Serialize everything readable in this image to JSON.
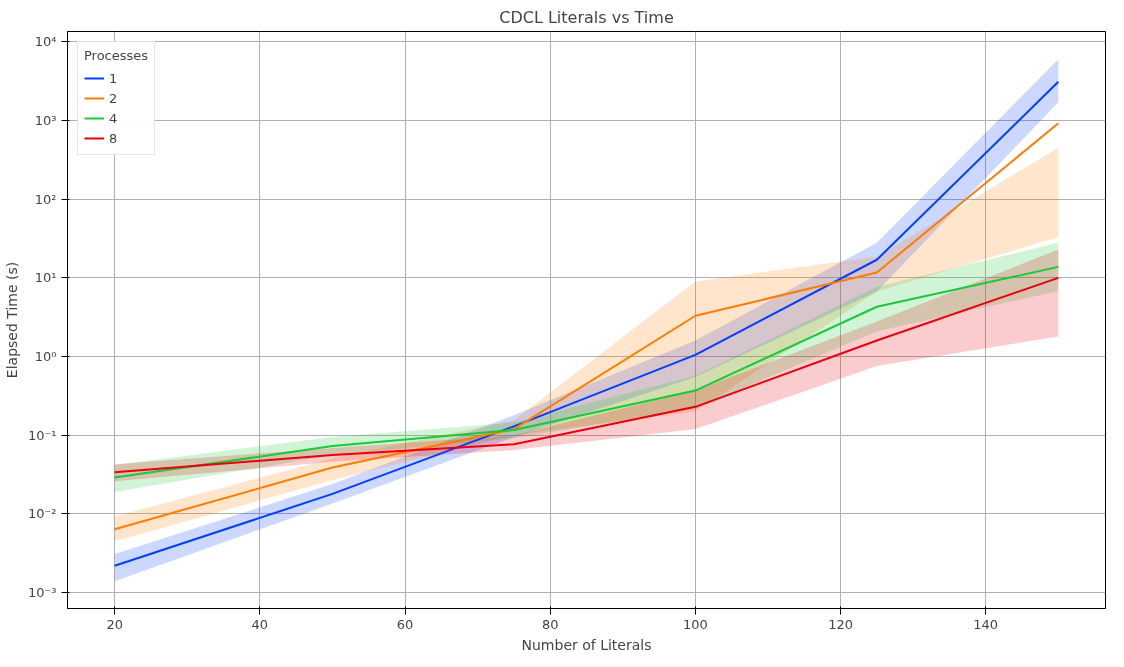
{
  "chart_data": {
    "type": "line",
    "title": "CDCL Literals vs Time",
    "xlabel": "Number of Literals",
    "ylabel": "Elapsed Time (s)",
    "legend_title": "Processes",
    "x": [
      20,
      50,
      75,
      100,
      125,
      150
    ],
    "series": [
      {
        "name": "1",
        "color": "#023eff",
        "values": [
          0.0022,
          0.018,
          0.13,
          1.05,
          17,
          3100
        ],
        "lower": [
          0.0014,
          0.0136,
          0.095,
          0.55,
          6.7,
          1700
        ],
        "upper": [
          0.0031,
          0.024,
          0.18,
          1.6,
          28,
          6000
        ]
      },
      {
        "name": "2",
        "color": "#ff7c00",
        "values": [
          0.0064,
          0.039,
          0.12,
          3.3,
          11.7,
          920
        ],
        "lower": [
          0.0045,
          0.027,
          0.1,
          0.2,
          6.7,
          33
        ],
        "upper": [
          0.0093,
          0.051,
          0.155,
          9,
          18.6,
          450
        ]
      },
      {
        "name": "4",
        "color": "#1ac938",
        "values": [
          0.029,
          0.073,
          0.117,
          0.37,
          4.3,
          13.8
        ],
        "lower": [
          0.019,
          0.056,
          0.092,
          0.22,
          2.1,
          6.8
        ],
        "upper": [
          0.042,
          0.095,
          0.146,
          0.57,
          7.7,
          28
        ]
      },
      {
        "name": "8",
        "color": "#e8000b",
        "values": [
          0.034,
          0.056,
          0.077,
          0.23,
          1.6,
          10
        ],
        "lower": [
          0.026,
          0.046,
          0.065,
          0.12,
          0.76,
          1.8
        ],
        "upper": [
          0.043,
          0.069,
          0.1,
          0.37,
          2.8,
          23
        ]
      }
    ],
    "log": "y",
    "grid": true,
    "legend": "top left",
    "line_style": "solid",
    "xlim": [
      13.5,
      156.5
    ],
    "xticks": [
      20,
      40,
      60,
      80,
      100,
      120,
      140
    ],
    "ylim": [
      0.00063,
      13500
    ],
    "yticks": [
      {
        "value": 0.001,
        "label": "10⁻³"
      },
      {
        "value": 0.01,
        "label": "10⁻²"
      },
      {
        "value": 0.1,
        "label": "10⁻¹"
      },
      {
        "value": 1,
        "label": "10⁰"
      },
      {
        "value": 10,
        "label": "10¹"
      },
      {
        "value": 100,
        "label": "10²"
      },
      {
        "value": 1000,
        "label": "10³"
      },
      {
        "value": 10000,
        "label": "10⁴"
      }
    ]
  }
}
